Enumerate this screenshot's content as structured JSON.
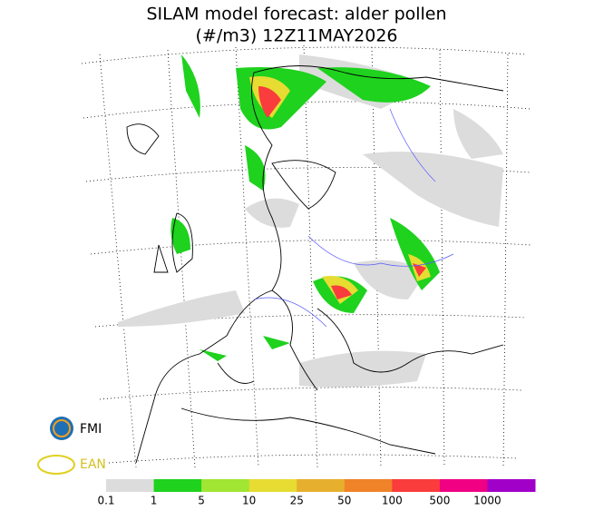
{
  "header": {
    "title": "SILAM model forecast: alder pollen",
    "subtitle": "(#/m3) 12Z11MAY2026"
  },
  "legend": {
    "levels": [
      0.1,
      1,
      5,
      10,
      25,
      50,
      100,
      500,
      1000
    ],
    "colors": [
      "#dcdcdc",
      "#1ed21e",
      "#a0e632",
      "#e6dc32",
      "#e6af2d",
      "#f08228",
      "#fa3c3c",
      "#f00082",
      "#a000c8"
    ]
  },
  "logos": {
    "fmi": "FMI",
    "ean": "EAN"
  }
}
